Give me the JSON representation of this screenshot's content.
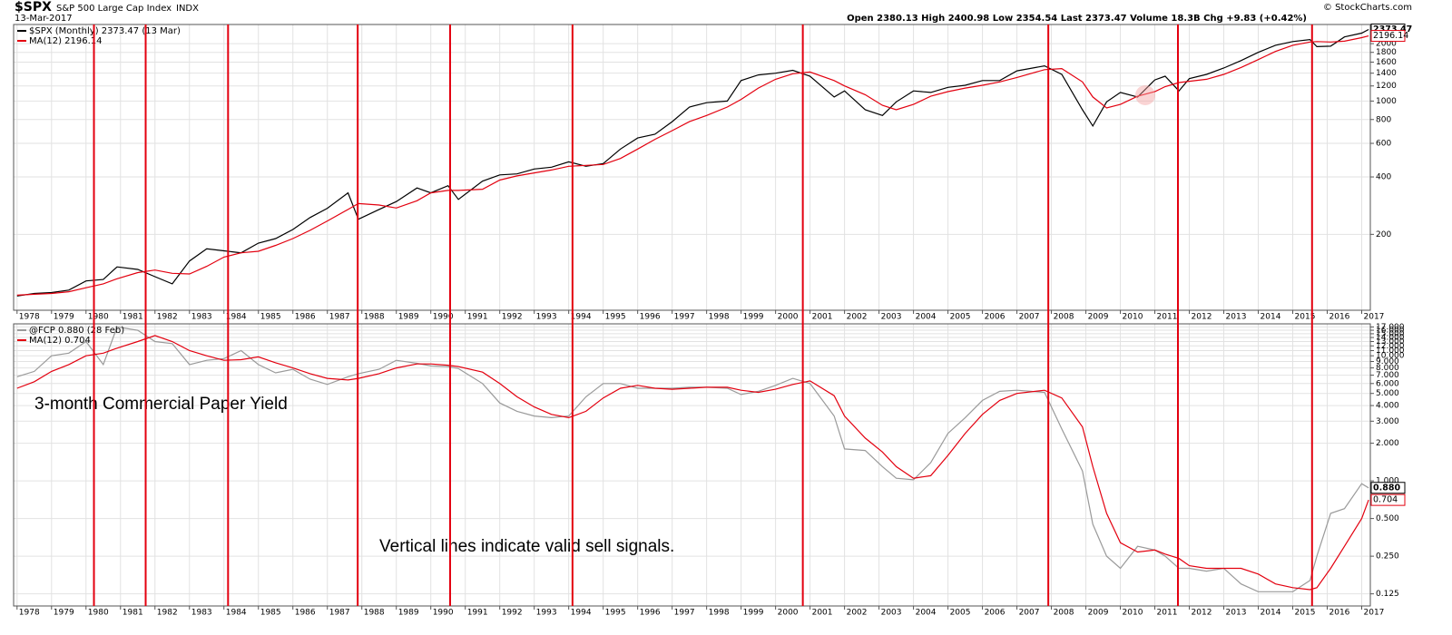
{
  "header": {
    "title": "$SPX",
    "name": "S&P 500 Large Cap Index",
    "exchange": "INDX",
    "date": "13-Mar-2017",
    "quote": "Open 2380.13 High 2400.98 Low 2354.54 Last 2373.47 Volume 18.3B Chg +9.83 (+0.42%)",
    "credit": "© StockCharts.com"
  },
  "sell_signals": [
    1980.23,
    1981.73,
    1984.12,
    1987.88,
    1990.56,
    1994.11,
    2000.79,
    2007.91,
    2011.67,
    2015.56
  ],
  "signal_color": "#e3000f",
  "chart_data": [
    {
      "type": "line",
      "log": true,
      "grid": true,
      "legend": "upper left",
      "xlim": [
        1977.9,
        2017.25
      ],
      "xticks": [
        1978,
        1979,
        1980,
        1981,
        1982,
        1983,
        1984,
        1985,
        1986,
        1987,
        1988,
        1989,
        1990,
        1991,
        1992,
        1993,
        1994,
        1995,
        1996,
        1997,
        1998,
        1999,
        2000,
        2001,
        2002,
        2003,
        2004,
        2005,
        2006,
        2007,
        2008,
        2009,
        2010,
        2011,
        2012,
        2013,
        2014,
        2015,
        2016,
        2017
      ],
      "ylim": [
        80,
        2520
      ],
      "yticks": [
        200,
        400,
        600,
        800,
        1000,
        1200,
        1400,
        1600,
        1800,
        2000
      ],
      "x": [
        1978.0,
        1978.5,
        1979.0,
        1979.5,
        1980.0,
        1980.5,
        1980.9,
        1981.5,
        1982.0,
        1982.5,
        1983.0,
        1983.5,
        1984.0,
        1984.5,
        1985.0,
        1985.5,
        1986.0,
        1986.5,
        1987.0,
        1987.6,
        1987.9,
        1988.5,
        1989.0,
        1989.6,
        1990.0,
        1990.5,
        1990.8,
        1991.5,
        1992.0,
        1992.5,
        1993.0,
        1993.5,
        1994.0,
        1994.5,
        1995.0,
        1995.5,
        1996.0,
        1996.5,
        1997.0,
        1997.5,
        1998.0,
        1998.6,
        1999.0,
        1999.5,
        2000.0,
        2000.5,
        2001.0,
        2001.7,
        2002.0,
        2002.6,
        2003.1,
        2003.5,
        2004.0,
        2004.5,
        2005.0,
        2005.5,
        2006.0,
        2006.5,
        2007.0,
        2007.8,
        2008.3,
        2008.9,
        2009.2,
        2009.6,
        2010.0,
        2010.5,
        2011.0,
        2011.3,
        2011.7,
        2012.0,
        2012.5,
        2013.0,
        2013.5,
        2014.0,
        2014.5,
        2015.0,
        2015.5,
        2015.7,
        2016.1,
        2016.5,
        2017.0,
        2017.2
      ],
      "series": [
        {
          "name": "$SPX (Monthly) 2373.47 (13 Mar)",
          "color": "#000000",
          "values": [
            95,
            98,
            99,
            102,
            114,
            116,
            135,
            131,
            120,
            110,
            145,
            168,
            164,
            160,
            180,
            190,
            212,
            245,
            274,
            330,
            240,
            270,
            297,
            350,
            330,
            360,
            305,
            380,
            410,
            415,
            440,
            450,
            480,
            455,
            470,
            560,
            640,
            670,
            780,
            930,
            980,
            1000,
            1280,
            1370,
            1400,
            1450,
            1350,
            1050,
            1130,
            900,
            840,
            990,
            1130,
            1110,
            1180,
            1210,
            1280,
            1280,
            1440,
            1530,
            1380,
            900,
            740,
            990,
            1110,
            1050,
            1290,
            1350,
            1130,
            1310,
            1380,
            1490,
            1630,
            1800,
            1960,
            2050,
            2100,
            1930,
            1940,
            2170,
            2270,
            2373.47
          ]
        },
        {
          "name": "MA(12) 2196.14",
          "color": "#e3000f",
          "values": [
            96,
            97,
            98,
            100,
            105,
            110,
            117,
            126,
            130,
            125,
            124,
            136,
            152,
            160,
            163,
            175,
            190,
            210,
            235,
            270,
            290,
            285,
            275,
            300,
            330,
            340,
            340,
            345,
            385,
            405,
            420,
            435,
            455,
            460,
            465,
            500,
            560,
            630,
            700,
            780,
            840,
            930,
            1020,
            1170,
            1300,
            1390,
            1420,
            1280,
            1200,
            1080,
            950,
            900,
            960,
            1060,
            1120,
            1170,
            1210,
            1260,
            1330,
            1460,
            1480,
            1260,
            1050,
            920,
            960,
            1060,
            1120,
            1190,
            1250,
            1270,
            1300,
            1380,
            1500,
            1650,
            1820,
            1960,
            2040,
            2050,
            2040,
            2060,
            2150,
            2196.14
          ]
        }
      ]
    },
    {
      "type": "line",
      "log": true,
      "grid": true,
      "legend": "upper left",
      "xlim": [
        1977.9,
        2017.25
      ],
      "xticks": [
        1978,
        1979,
        1980,
        1981,
        1982,
        1983,
        1984,
        1985,
        1986,
        1987,
        1988,
        1989,
        1990,
        1991,
        1992,
        1993,
        1994,
        1995,
        1996,
        1997,
        1998,
        1999,
        2000,
        2001,
        2002,
        2003,
        2004,
        2005,
        2006,
        2007,
        2008,
        2009,
        2010,
        2011,
        2012,
        2013,
        2014,
        2015,
        2016,
        2017
      ],
      "ylim": [
        0.1,
        18
      ],
      "yticks": [
        0.125,
        {
          "value": 0.25,
          "label": "0.250"
        },
        {
          "value": 0.5,
          "label": "0.500"
        },
        {
          "value": 1,
          "label": "1.000"
        },
        {
          "value": 2,
          "label": "2.000"
        },
        {
          "value": 3,
          "label": "3.000"
        },
        {
          "value": 4,
          "label": "4.000"
        },
        {
          "value": 5,
          "label": "5.000"
        },
        {
          "value": 6,
          "label": "6.000"
        },
        {
          "value": 7,
          "label": "7.000"
        },
        {
          "value": 8,
          "label": "8.000"
        },
        {
          "value": 9,
          "label": "9.000"
        },
        {
          "value": 10,
          "label": "10.000"
        },
        {
          "value": 11,
          "label": "11.000"
        },
        {
          "value": 12,
          "label": "12.000"
        },
        {
          "value": 13,
          "label": "13.000"
        },
        {
          "value": 14,
          "label": "14.000"
        },
        {
          "value": 15,
          "label": "15.000"
        },
        {
          "value": 16,
          "label": "16.000"
        },
        {
          "value": 17,
          "label": "17.000"
        }
      ],
      "annotations": [
        "3-month Commercial Paper Yield",
        "Vertical lines indicate valid sell signals."
      ],
      "annotation_color": "#1a1ad6",
      "x": [
        1978.0,
        1978.5,
        1979.0,
        1979.5,
        1980.0,
        1980.5,
        1980.9,
        1981.5,
        1982.0,
        1982.5,
        1983.0,
        1983.5,
        1984.0,
        1984.5,
        1985.0,
        1985.5,
        1986.0,
        1986.5,
        1987.0,
        1987.6,
        1987.9,
        1988.5,
        1989.0,
        1989.6,
        1990.0,
        1990.5,
        1990.8,
        1991.5,
        1992.0,
        1992.5,
        1993.0,
        1993.5,
        1994.0,
        1994.5,
        1995.0,
        1995.5,
        1996.0,
        1996.5,
        1997.0,
        1997.5,
        1998.0,
        1998.6,
        1999.0,
        1999.5,
        2000.0,
        2000.5,
        2001.0,
        2001.7,
        2002.0,
        2002.6,
        2003.1,
        2003.5,
        2004.0,
        2004.5,
        2005.0,
        2005.5,
        2006.0,
        2006.5,
        2007.0,
        2007.8,
        2008.3,
        2008.9,
        2009.2,
        2009.6,
        2010.0,
        2010.5,
        2011.0,
        2011.3,
        2011.7,
        2012.0,
        2012.5,
        2013.0,
        2013.5,
        2014.0,
        2014.5,
        2015.0,
        2015.5,
        2015.7,
        2016.1,
        2016.5,
        2017.0,
        2017.2
      ],
      "series": [
        {
          "name": "@FCP 0.880 (28 Feb)",
          "color": "#9a9a9a",
          "last_label": "0.880",
          "values": [
            6.8,
            7.5,
            10,
            10.5,
            13,
            8.5,
            17,
            16,
            13,
            12.5,
            8.5,
            9.2,
            9.5,
            11,
            8.5,
            7.3,
            7.8,
            6.5,
            5.9,
            6.8,
            7.2,
            7.8,
            9.2,
            8.7,
            8.3,
            8.2,
            7.9,
            6.0,
            4.2,
            3.6,
            3.3,
            3.2,
            3.3,
            4.7,
            6.0,
            6.0,
            5.5,
            5.5,
            5.5,
            5.6,
            5.6,
            5.5,
            4.9,
            5.2,
            5.8,
            6.6,
            6.0,
            3.3,
            1.8,
            1.75,
            1.3,
            1.05,
            1.02,
            1.4,
            2.4,
            3.2,
            4.4,
            5.2,
            5.3,
            5.1,
            2.6,
            1.2,
            0.45,
            0.25,
            0.2,
            0.3,
            0.28,
            0.25,
            0.2,
            0.2,
            0.19,
            0.2,
            0.15,
            0.13,
            0.13,
            0.13,
            0.16,
            0.25,
            0.55,
            0.6,
            0.95,
            0.88
          ]
        },
        {
          "name": "MA(12) 0.704",
          "color": "#e3000f",
          "values": [
            5.5,
            6.2,
            7.5,
            8.5,
            10,
            10.5,
            11.5,
            13,
            14.5,
            13,
            11,
            10,
            9.2,
            9.3,
            9.8,
            8.8,
            8,
            7.2,
            6.6,
            6.4,
            6.6,
            7.2,
            8.0,
            8.6,
            8.6,
            8.4,
            8.2,
            7.4,
            6.0,
            4.7,
            3.9,
            3.4,
            3.2,
            3.6,
            4.6,
            5.5,
            5.8,
            5.5,
            5.4,
            5.5,
            5.6,
            5.6,
            5.3,
            5.1,
            5.4,
            5.9,
            6.3,
            4.8,
            3.3,
            2.2,
            1.7,
            1.3,
            1.05,
            1.1,
            1.6,
            2.4,
            3.4,
            4.4,
            5.0,
            5.3,
            4.6,
            2.7,
            1.3,
            0.55,
            0.32,
            0.27,
            0.28,
            0.26,
            0.24,
            0.21,
            0.2,
            0.2,
            0.2,
            0.18,
            0.15,
            0.14,
            0.135,
            0.14,
            0.2,
            0.3,
            0.5,
            0.704
          ]
        }
      ]
    }
  ]
}
